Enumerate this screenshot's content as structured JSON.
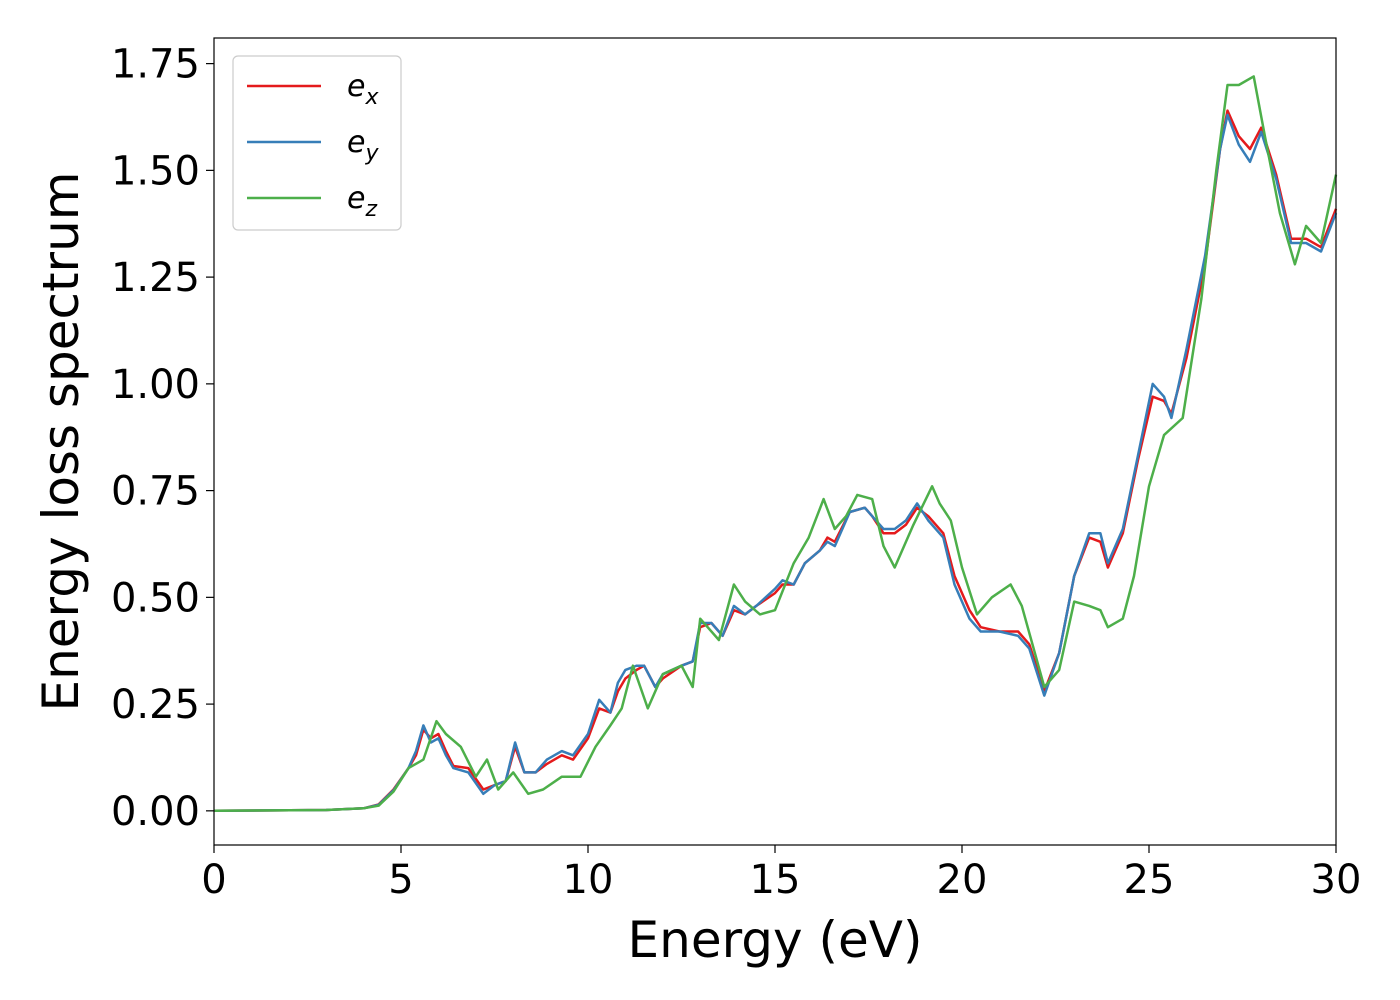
{
  "chart_data": {
    "type": "line",
    "xlabel": "Energy (eV)",
    "ylabel": "Energy loss spectrum",
    "xlim": [
      0,
      30
    ],
    "ylim": [
      -0.08,
      1.81
    ],
    "xticks": [
      0,
      5,
      10,
      15,
      20,
      25,
      30
    ],
    "xtick_labels": [
      "0",
      "5",
      "10",
      "15",
      "20",
      "25",
      "30"
    ],
    "yticks": [
      0,
      0.25,
      0.5,
      0.75,
      1.0,
      1.25,
      1.5,
      1.75
    ],
    "ytick_labels": [
      "0.00",
      "0.25",
      "0.50",
      "0.75",
      "1.00",
      "1.25",
      "1.50",
      "1.75"
    ],
    "grid": false,
    "legend_position": "top-left",
    "series": [
      {
        "name": "e",
        "sub": "x",
        "color": "#e41a1c",
        "points": [
          [
            0,
            0
          ],
          [
            3,
            0.002
          ],
          [
            4,
            0.006
          ],
          [
            4.4,
            0.015
          ],
          [
            4.8,
            0.05
          ],
          [
            5.2,
            0.1
          ],
          [
            5.4,
            0.13
          ],
          [
            5.6,
            0.19
          ],
          [
            5.8,
            0.17
          ],
          [
            6.0,
            0.18
          ],
          [
            6.2,
            0.14
          ],
          [
            6.4,
            0.105
          ],
          [
            6.8,
            0.1
          ],
          [
            7.2,
            0.05
          ],
          [
            7.5,
            0.06
          ],
          [
            7.8,
            0.07
          ],
          [
            8.05,
            0.15
          ],
          [
            8.3,
            0.09
          ],
          [
            8.6,
            0.09
          ],
          [
            8.9,
            0.11
          ],
          [
            9.3,
            0.13
          ],
          [
            9.6,
            0.12
          ],
          [
            10.0,
            0.17
          ],
          [
            10.3,
            0.24
          ],
          [
            10.6,
            0.23
          ],
          [
            10.8,
            0.28
          ],
          [
            11.0,
            0.31
          ],
          [
            11.3,
            0.33
          ],
          [
            11.5,
            0.34
          ],
          [
            11.8,
            0.29
          ],
          [
            12.0,
            0.31
          ],
          [
            12.5,
            0.34
          ],
          [
            12.8,
            0.35
          ],
          [
            13.0,
            0.43
          ],
          [
            13.3,
            0.44
          ],
          [
            13.6,
            0.41
          ],
          [
            13.9,
            0.47
          ],
          [
            14.2,
            0.46
          ],
          [
            14.5,
            0.48
          ],
          [
            15.0,
            0.51
          ],
          [
            15.2,
            0.53
          ],
          [
            15.5,
            0.53
          ],
          [
            15.8,
            0.58
          ],
          [
            16.2,
            0.61
          ],
          [
            16.4,
            0.64
          ],
          [
            16.6,
            0.63
          ],
          [
            17.0,
            0.7
          ],
          [
            17.4,
            0.71
          ],
          [
            17.6,
            0.69
          ],
          [
            17.9,
            0.65
          ],
          [
            18.2,
            0.65
          ],
          [
            18.5,
            0.67
          ],
          [
            18.8,
            0.71
          ],
          [
            19.1,
            0.69
          ],
          [
            19.5,
            0.65
          ],
          [
            19.8,
            0.55
          ],
          [
            20.2,
            0.47
          ],
          [
            20.5,
            0.43
          ],
          [
            21.0,
            0.42
          ],
          [
            21.5,
            0.42
          ],
          [
            21.8,
            0.39
          ],
          [
            22.2,
            0.28
          ],
          [
            22.6,
            0.37
          ],
          [
            23.0,
            0.55
          ],
          [
            23.4,
            0.64
          ],
          [
            23.7,
            0.63
          ],
          [
            23.9,
            0.57
          ],
          [
            24.3,
            0.65
          ],
          [
            24.7,
            0.82
          ],
          [
            25.1,
            0.97
          ],
          [
            25.4,
            0.96
          ],
          [
            25.6,
            0.93
          ],
          [
            26.0,
            1.06
          ],
          [
            26.5,
            1.28
          ],
          [
            26.9,
            1.55
          ],
          [
            27.1,
            1.64
          ],
          [
            27.4,
            1.58
          ],
          [
            27.7,
            1.55
          ],
          [
            28.0,
            1.6
          ],
          [
            28.4,
            1.49
          ],
          [
            28.8,
            1.34
          ],
          [
            29.2,
            1.34
          ],
          [
            29.6,
            1.32
          ],
          [
            30.0,
            1.41
          ]
        ]
      },
      {
        "name": "e",
        "sub": "y",
        "color": "#377eb8",
        "points": [
          [
            0,
            0
          ],
          [
            3,
            0.002
          ],
          [
            4,
            0.006
          ],
          [
            4.4,
            0.014
          ],
          [
            4.8,
            0.048
          ],
          [
            5.2,
            0.1
          ],
          [
            5.4,
            0.14
          ],
          [
            5.6,
            0.2
          ],
          [
            5.8,
            0.16
          ],
          [
            6.0,
            0.17
          ],
          [
            6.2,
            0.13
          ],
          [
            6.4,
            0.1
          ],
          [
            6.8,
            0.09
          ],
          [
            7.2,
            0.04
          ],
          [
            7.5,
            0.06
          ],
          [
            7.8,
            0.07
          ],
          [
            8.05,
            0.16
          ],
          [
            8.3,
            0.09
          ],
          [
            8.6,
            0.09
          ],
          [
            8.9,
            0.12
          ],
          [
            9.3,
            0.14
          ],
          [
            9.6,
            0.13
          ],
          [
            10.0,
            0.18
          ],
          [
            10.3,
            0.26
          ],
          [
            10.6,
            0.23
          ],
          [
            10.8,
            0.3
          ],
          [
            11.0,
            0.33
          ],
          [
            11.3,
            0.34
          ],
          [
            11.5,
            0.34
          ],
          [
            11.8,
            0.29
          ],
          [
            12.0,
            0.32
          ],
          [
            12.5,
            0.34
          ],
          [
            12.8,
            0.35
          ],
          [
            13.0,
            0.44
          ],
          [
            13.3,
            0.44
          ],
          [
            13.6,
            0.41
          ],
          [
            13.9,
            0.48
          ],
          [
            14.2,
            0.46
          ],
          [
            14.5,
            0.48
          ],
          [
            15.0,
            0.52
          ],
          [
            15.2,
            0.54
          ],
          [
            15.5,
            0.53
          ],
          [
            15.8,
            0.58
          ],
          [
            16.2,
            0.61
          ],
          [
            16.4,
            0.63
          ],
          [
            16.6,
            0.62
          ],
          [
            17.0,
            0.7
          ],
          [
            17.4,
            0.71
          ],
          [
            17.6,
            0.69
          ],
          [
            17.9,
            0.66
          ],
          [
            18.2,
            0.66
          ],
          [
            18.5,
            0.68
          ],
          [
            18.8,
            0.72
          ],
          [
            19.1,
            0.68
          ],
          [
            19.5,
            0.64
          ],
          [
            19.8,
            0.53
          ],
          [
            20.2,
            0.45
          ],
          [
            20.5,
            0.42
          ],
          [
            21.0,
            0.42
          ],
          [
            21.5,
            0.41
          ],
          [
            21.8,
            0.38
          ],
          [
            22.2,
            0.27
          ],
          [
            22.6,
            0.37
          ],
          [
            23.0,
            0.55
          ],
          [
            23.4,
            0.65
          ],
          [
            23.7,
            0.65
          ],
          [
            23.9,
            0.58
          ],
          [
            24.3,
            0.66
          ],
          [
            24.7,
            0.83
          ],
          [
            25.1,
            1.0
          ],
          [
            25.4,
            0.97
          ],
          [
            25.6,
            0.92
          ],
          [
            26.0,
            1.08
          ],
          [
            26.5,
            1.3
          ],
          [
            26.9,
            1.55
          ],
          [
            27.1,
            1.63
          ],
          [
            27.4,
            1.56
          ],
          [
            27.7,
            1.52
          ],
          [
            28.0,
            1.59
          ],
          [
            28.4,
            1.48
          ],
          [
            28.8,
            1.33
          ],
          [
            29.2,
            1.33
          ],
          [
            29.6,
            1.31
          ],
          [
            30.0,
            1.4
          ]
        ]
      },
      {
        "name": "e",
        "sub": "z",
        "color": "#4daf4a",
        "points": [
          [
            0,
            0
          ],
          [
            3,
            0.002
          ],
          [
            4,
            0.006
          ],
          [
            4.4,
            0.012
          ],
          [
            4.8,
            0.045
          ],
          [
            5.2,
            0.1
          ],
          [
            5.6,
            0.12
          ],
          [
            5.95,
            0.21
          ],
          [
            6.2,
            0.18
          ],
          [
            6.6,
            0.15
          ],
          [
            7.0,
            0.08
          ],
          [
            7.3,
            0.12
          ],
          [
            7.6,
            0.05
          ],
          [
            8.0,
            0.09
          ],
          [
            8.4,
            0.04
          ],
          [
            8.8,
            0.05
          ],
          [
            9.3,
            0.08
          ],
          [
            9.8,
            0.08
          ],
          [
            10.2,
            0.15
          ],
          [
            10.6,
            0.2
          ],
          [
            10.9,
            0.24
          ],
          [
            11.2,
            0.34
          ],
          [
            11.6,
            0.24
          ],
          [
            12.0,
            0.32
          ],
          [
            12.5,
            0.34
          ],
          [
            12.8,
            0.29
          ],
          [
            13.0,
            0.45
          ],
          [
            13.5,
            0.4
          ],
          [
            13.9,
            0.53
          ],
          [
            14.2,
            0.49
          ],
          [
            14.6,
            0.46
          ],
          [
            15.0,
            0.47
          ],
          [
            15.5,
            0.58
          ],
          [
            15.9,
            0.64
          ],
          [
            16.3,
            0.73
          ],
          [
            16.6,
            0.66
          ],
          [
            16.9,
            0.69
          ],
          [
            17.2,
            0.74
          ],
          [
            17.6,
            0.73
          ],
          [
            17.9,
            0.62
          ],
          [
            18.2,
            0.57
          ],
          [
            18.7,
            0.67
          ],
          [
            19.2,
            0.76
          ],
          [
            19.4,
            0.72
          ],
          [
            19.7,
            0.68
          ],
          [
            20.0,
            0.57
          ],
          [
            20.4,
            0.46
          ],
          [
            20.8,
            0.5
          ],
          [
            21.3,
            0.53
          ],
          [
            21.6,
            0.48
          ],
          [
            22.2,
            0.29
          ],
          [
            22.6,
            0.33
          ],
          [
            23.0,
            0.49
          ],
          [
            23.4,
            0.48
          ],
          [
            23.7,
            0.47
          ],
          [
            23.9,
            0.43
          ],
          [
            24.3,
            0.45
          ],
          [
            24.6,
            0.55
          ],
          [
            25.0,
            0.76
          ],
          [
            25.4,
            0.88
          ],
          [
            25.9,
            0.92
          ],
          [
            26.4,
            1.2
          ],
          [
            26.8,
            1.5
          ],
          [
            27.1,
            1.7
          ],
          [
            27.4,
            1.7
          ],
          [
            27.8,
            1.72
          ],
          [
            28.1,
            1.58
          ],
          [
            28.5,
            1.4
          ],
          [
            28.9,
            1.28
          ],
          [
            29.2,
            1.37
          ],
          [
            29.6,
            1.33
          ],
          [
            30.0,
            1.49
          ]
        ]
      }
    ]
  }
}
